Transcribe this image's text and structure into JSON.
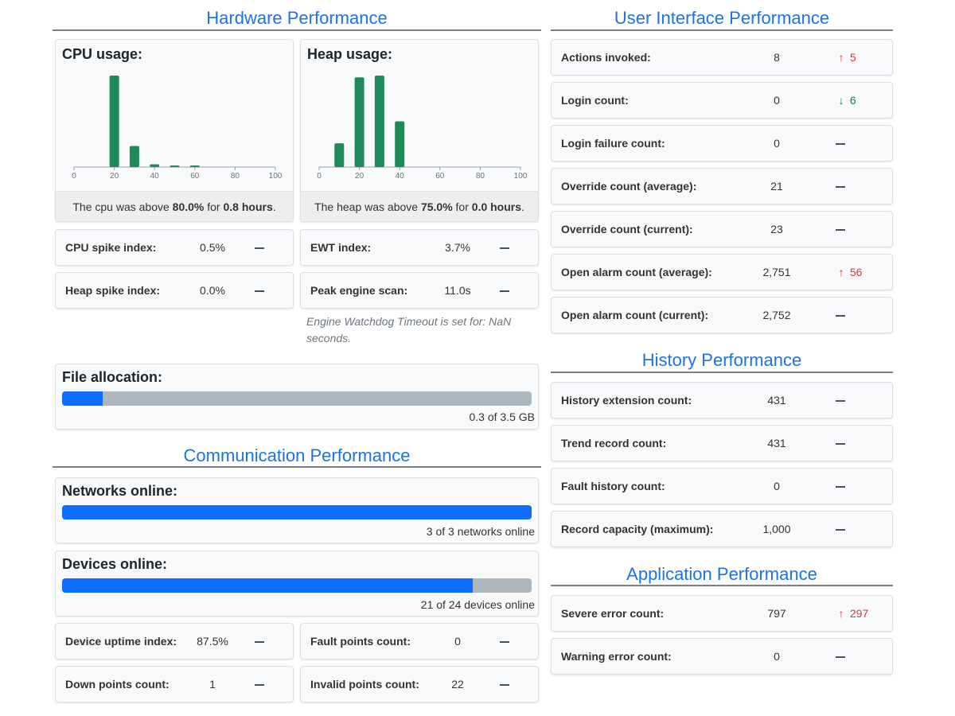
{
  "sections": {
    "hardware": "Hardware Performance",
    "ui": "User Interface Performance",
    "communication": "Communication Performance",
    "history": "History Performance",
    "application": "Application Performance"
  },
  "cpu": {
    "title": "CPU usage:",
    "foot_prefix": "The cpu was above ",
    "foot_pct": "80.0%",
    "foot_mid": " for ",
    "foot_hours": "0.8 hours",
    "foot_suffix": ".",
    "chart_data": {
      "type": "bar",
      "x": [
        0,
        10,
        20,
        30,
        40,
        50,
        60,
        70,
        80,
        90,
        100
      ],
      "values": [
        0,
        0,
        100,
        23,
        3,
        1,
        0.5,
        0,
        0,
        0,
        0
      ],
      "tick_labels": [
        "0",
        "20",
        "40",
        "60",
        "80",
        "100"
      ],
      "ylim": [
        0,
        100
      ],
      "color": "#1e8a5a"
    }
  },
  "heap": {
    "title": "Heap usage:",
    "foot_prefix": "The heap was above ",
    "foot_pct": "75.0%",
    "foot_mid": " for ",
    "foot_hours": "0.0 hours",
    "foot_suffix": ".",
    "chart_data": {
      "type": "bar",
      "x": [
        0,
        10,
        20,
        30,
        40,
        50,
        60,
        70,
        80,
        90,
        100
      ],
      "values": [
        0,
        26,
        98,
        100,
        50,
        0,
        0,
        0,
        0,
        0,
        0
      ],
      "tick_labels": [
        "0",
        "20",
        "40",
        "60",
        "80",
        "100"
      ],
      "ylim": [
        0,
        100
      ],
      "color": "#1e8a5a"
    }
  },
  "hw_metrics": [
    {
      "label": "CPU spike index:",
      "value": "0.5%",
      "trend": "none",
      "delta": ""
    },
    {
      "label": "EWT index:",
      "value": "3.7%",
      "trend": "none",
      "delta": ""
    },
    {
      "label": "Heap spike index:",
      "value": "0.0%",
      "trend": "none",
      "delta": ""
    },
    {
      "label": "Peak engine scan:",
      "value": "11.0s",
      "trend": "none",
      "delta": ""
    }
  ],
  "ewt_note": "Engine Watchdog Timeout is set for: NaN seconds.",
  "file_allocation": {
    "title": "File allocation:",
    "caption": "0.3 of 3.5 GB",
    "fraction": 0.0857
  },
  "networks": {
    "title": "Networks online:",
    "caption": "3 of 3 networks online",
    "fraction": 1.0
  },
  "devices": {
    "title": "Devices online:",
    "caption": "21 of 24 devices online",
    "fraction": 0.875
  },
  "comm_metrics": [
    {
      "label": "Device uptime index:",
      "value": "87.5%",
      "trend": "none",
      "delta": ""
    },
    {
      "label": "Fault points count:",
      "value": "0",
      "trend": "none",
      "delta": ""
    },
    {
      "label": "Down points count:",
      "value": "1",
      "trend": "none",
      "delta": ""
    },
    {
      "label": "Invalid points count:",
      "value": "22",
      "trend": "none",
      "delta": ""
    }
  ],
  "ui_metrics": [
    {
      "label": "Actions invoked:",
      "value": "8",
      "trend": "up",
      "delta": "5"
    },
    {
      "label": "Login count:",
      "value": "0",
      "trend": "down",
      "delta": "6"
    },
    {
      "label": "Login failure count:",
      "value": "0",
      "trend": "none",
      "delta": ""
    },
    {
      "label": "Override count (average):",
      "value": "21",
      "trend": "none",
      "delta": ""
    },
    {
      "label": "Override count (current):",
      "value": "23",
      "trend": "none",
      "delta": ""
    },
    {
      "label": "Open alarm count (average):",
      "value": "2,751",
      "trend": "up",
      "delta": "56"
    },
    {
      "label": "Open alarm count (current):",
      "value": "2,752",
      "trend": "none",
      "delta": ""
    }
  ],
  "history_metrics": [
    {
      "label": "History extension count:",
      "value": "431",
      "trend": "none",
      "delta": ""
    },
    {
      "label": "Trend record count:",
      "value": "431",
      "trend": "none",
      "delta": ""
    },
    {
      "label": "Fault history count:",
      "value": "0",
      "trend": "none",
      "delta": ""
    },
    {
      "label": "Record capacity (maximum):",
      "value": "1,000",
      "trend": "none",
      "delta": ""
    }
  ],
  "app_metrics": [
    {
      "label": "Severe error count:",
      "value": "797",
      "trend": "up",
      "delta": "297"
    },
    {
      "label": "Warning error count:",
      "value": "0",
      "trend": "none",
      "delta": ""
    }
  ],
  "icons": {
    "up": "arrow-up-icon",
    "down": "arrow-down-icon",
    "none": "dash-icon"
  }
}
